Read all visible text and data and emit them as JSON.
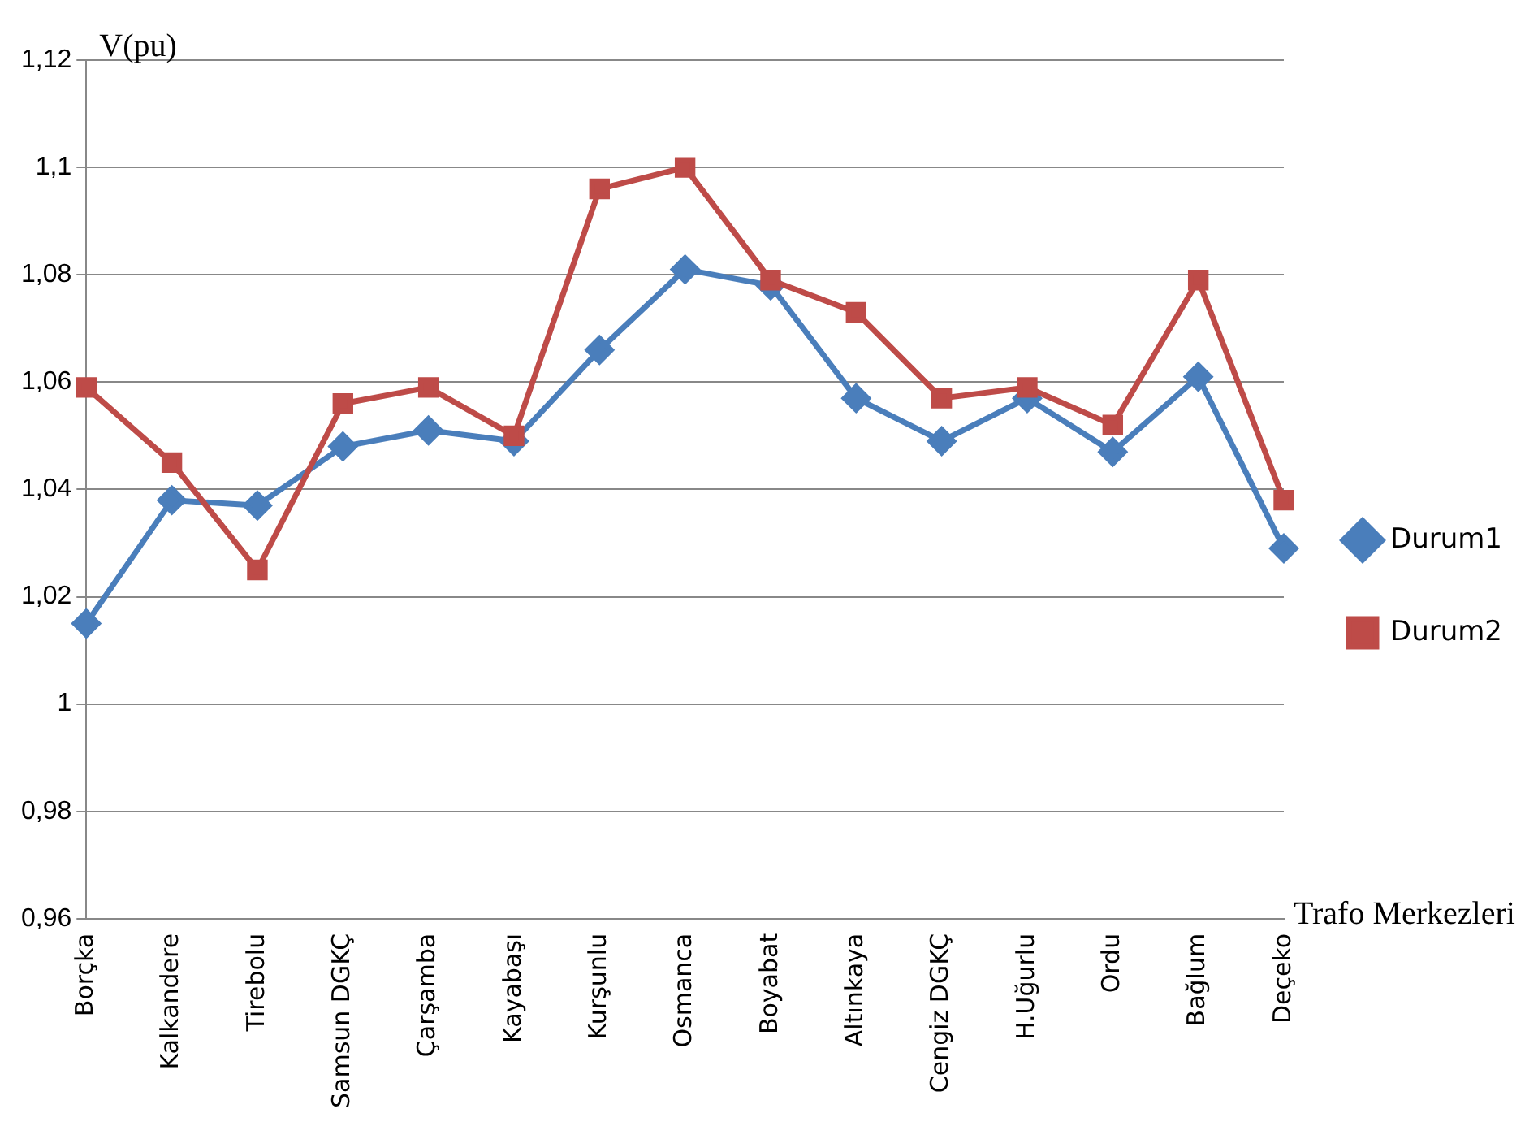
{
  "chart_data": {
    "type": "line",
    "xlabel": "Trafo Merkezleri",
    "ylabel": "V(pu)",
    "categories": [
      "Borçka",
      "Kalkandere",
      "Tirebolu",
      "Samsun DGKÇ",
      "Çarşamba",
      "Kayabaşı",
      "Kurşunlu",
      "Osmanca",
      "Boyabat",
      "Altınkaya",
      "Cengiz DGKÇ",
      "H.Uğurlu",
      "Ordu",
      "Bağlum",
      "Deçeko"
    ],
    "series": [
      {
        "name": "Durum1",
        "color": "#4a7ebb",
        "marker": "diamond",
        "values": [
          1.015,
          1.038,
          1.037,
          1.048,
          1.051,
          1.049,
          1.066,
          1.081,
          1.078,
          1.057,
          1.049,
          1.057,
          1.047,
          1.061,
          1.029
        ]
      },
      {
        "name": "Durum2",
        "color": "#be4b48",
        "marker": "square",
        "values": [
          1.059,
          1.045,
          1.025,
          1.056,
          1.059,
          1.05,
          1.096,
          1.1,
          1.079,
          1.073,
          1.057,
          1.059,
          1.052,
          1.079,
          1.038
        ]
      }
    ],
    "ylim": [
      0.96,
      1.12
    ],
    "yticks": [
      {
        "value": 0.96,
        "label": "0,96"
      },
      {
        "value": 0.98,
        "label": "0,98"
      },
      1,
      {
        "value": 1.02,
        "label": "1,02"
      },
      {
        "value": 1.04,
        "label": "1,04"
      },
      {
        "value": 1.06,
        "label": "1,06"
      },
      {
        "value": 1.08,
        "label": "1,08"
      },
      {
        "value": 1.1,
        "label": "1,1"
      },
      {
        "value": 1.12,
        "label": "1,12"
      }
    ],
    "grid": "y",
    "legend": "right",
    "line_style": "solid"
  }
}
